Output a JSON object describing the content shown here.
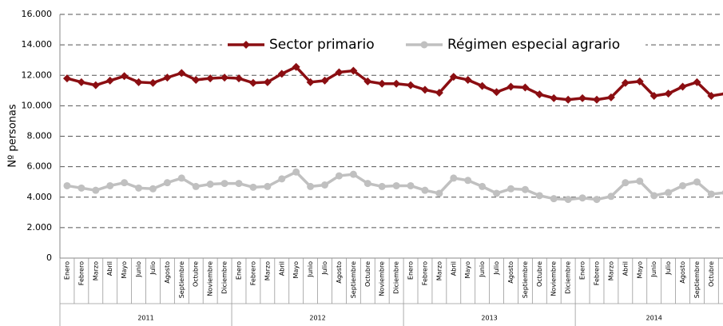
{
  "chart_data": {
    "type": "line",
    "y_label": "Nº personas",
    "categories": [
      "Enero",
      "Febrero",
      "Marzo",
      "Abril",
      "Mayo",
      "Junio",
      "Julio",
      "Agosto",
      "Septiembre",
      "Octubre",
      "Noviembre",
      "Diciembre",
      "Enero",
      "Febrero",
      "Marzo",
      "Abril",
      "Mayo",
      "Junio",
      "Julio",
      "Agosto",
      "Septiembre",
      "Octubre",
      "Noviembre",
      "Diciembre",
      "Enero",
      "Febrero",
      "Marzo",
      "Abril",
      "Mayo",
      "Junio",
      "Julio",
      "Agosto",
      "Septiembre",
      "Octubre",
      "Noviembre",
      "Diciembre",
      "Enero",
      "Febrero",
      "Marzo",
      "Abril",
      "Mayo",
      "Junio",
      "Julio",
      "Agosto",
      "Septiembre",
      "Octubre",
      null
    ],
    "years": [
      "2011",
      "2012",
      "2013",
      "2014"
    ],
    "series": [
      {
        "name": "Sector primario",
        "color": "#8b0e12",
        "values": [
          11800,
          11550,
          11350,
          11650,
          11950,
          11550,
          11500,
          11850,
          12150,
          11700,
          11800,
          11850,
          11800,
          11500,
          11550,
          12100,
          12550,
          11550,
          11650,
          12200,
          12300,
          11600,
          11450,
          11450,
          11350,
          11050,
          10850,
          11900,
          11700,
          11300,
          10900,
          11250,
          11200,
          10750,
          10500,
          10400,
          10500,
          10400,
          10550,
          11500,
          11600,
          10650,
          10800,
          11250,
          11550,
          10650,
          10800
        ]
      },
      {
        "name": "Régimen especial agrario",
        "color": "#c0c0c0",
        "values": [
          4750,
          4600,
          4450,
          4750,
          4950,
          4600,
          4550,
          4950,
          5250,
          4700,
          4850,
          4900,
          4900,
          4650,
          4700,
          5200,
          5650,
          4700,
          4800,
          5400,
          5500,
          4900,
          4700,
          4750,
          4750,
          4450,
          4250,
          5250,
          5100,
          4700,
          4250,
          4550,
          4500,
          4100,
          3900,
          3850,
          3950,
          3850,
          4050,
          4950,
          5050,
          4100,
          4300,
          4750,
          5000,
          4200,
          4300
        ]
      }
    ],
    "ylim": [
      0,
      16000
    ],
    "yticks": [
      0,
      {
        "value": 2000,
        "label": "2.000"
      },
      {
        "value": 4000,
        "label": "4.000"
      },
      {
        "value": 6000,
        "label": "6.000"
      },
      {
        "value": 8000,
        "label": "8.000"
      },
      {
        "value": 10000,
        "label": "10.000"
      },
      {
        "value": 12000,
        "label": "12.000"
      },
      {
        "value": 14000,
        "label": "14.000"
      },
      {
        "value": 16000,
        "label": "16.000"
      }
    ],
    "grid": true,
    "legend": "top"
  }
}
